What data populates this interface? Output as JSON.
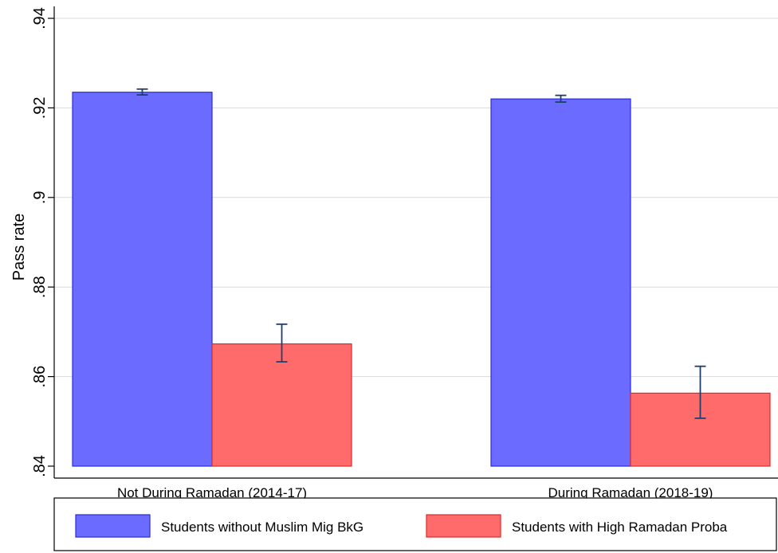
{
  "chart_data": {
    "type": "bar",
    "title": "",
    "xlabel": "",
    "ylabel": "Pass rate",
    "ylim": [
      0.84,
      0.94
    ],
    "yticks": [
      ".84",
      ".86",
      ".88",
      ".9",
      ".92",
      ".94"
    ],
    "ytick_values": [
      0.84,
      0.86,
      0.88,
      0.9,
      0.92,
      0.94
    ],
    "grid": true,
    "legend_position": "bottom",
    "categories": [
      "Not During Ramadan (2014-17)",
      "During Ramadan (2018-19)"
    ],
    "series": [
      {
        "name": "Students without Muslim Mig BkG",
        "color": "#6b6bff",
        "edge_color": "#2a2ae0",
        "values": [
          0.9235,
          0.922
        ],
        "ci_low": [
          0.9229,
          0.9213
        ],
        "ci_high": [
          0.9242,
          0.9228
        ]
      },
      {
        "name": "Students with High Ramadan Proba",
        "color": "#ff6b6b",
        "edge_color": "#e02a2a",
        "values": [
          0.8673,
          0.8563
        ],
        "ci_low": [
          0.8633,
          0.8507
        ],
        "ci_high": [
          0.8717,
          0.8623
        ]
      }
    ],
    "errorbar_color": "#1f3f6b"
  }
}
